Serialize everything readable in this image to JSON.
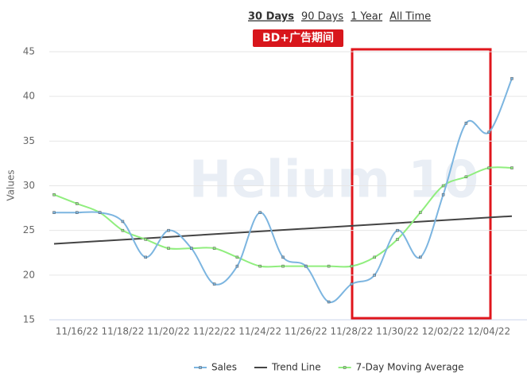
{
  "chart_data": {
    "type": "line",
    "range_buttons": [
      "30 Days",
      "90 Days",
      "1 Year",
      "All Time"
    ],
    "active_range": 0,
    "annotation": "BD+广告期间",
    "watermark": "Helium 10",
    "y_label": "Values",
    "categories": [
      null,
      "11/16/22",
      null,
      "11/18/22",
      null,
      "11/20/22",
      null,
      "11/22/22",
      null,
      "11/24/22",
      null,
      "11/26/22",
      null,
      "11/28/22",
      null,
      "11/30/22",
      null,
      "12/02/22",
      null,
      "12/04/22",
      null
    ],
    "series": [
      {
        "name": "Sales",
        "color": "#7cb5e0",
        "markers": true,
        "smooth": true,
        "values": [
          27,
          27,
          27,
          26,
          22,
          25,
          23,
          19,
          21,
          27,
          22,
          21,
          17,
          19,
          20,
          25,
          22,
          29,
          37,
          36,
          42
        ]
      },
      {
        "name": "Trend Line",
        "color": "#444444",
        "markers": false,
        "smooth": false,
        "values": [
          23.5,
          23.65,
          23.8,
          23.95,
          24.1,
          24.3,
          24.4,
          24.6,
          24.7,
          24.9,
          25.0,
          25.2,
          25.4,
          25.5,
          25.7,
          25.8,
          26.0,
          26.1,
          26.3,
          26.4,
          26.6
        ]
      },
      {
        "name": "7-Day Moving Average",
        "color": "#90ee7e",
        "markers": true,
        "smooth": true,
        "values": [
          29,
          28,
          27,
          25,
          24,
          23,
          23,
          23,
          22,
          21,
          21,
          21,
          21,
          21,
          22,
          24,
          27,
          30,
          31,
          32,
          32
        ]
      }
    ],
    "ylim": [
      15,
      45
    ],
    "yticks": [
      15,
      20,
      25,
      30,
      35,
      40,
      45
    ],
    "grid": true
  }
}
